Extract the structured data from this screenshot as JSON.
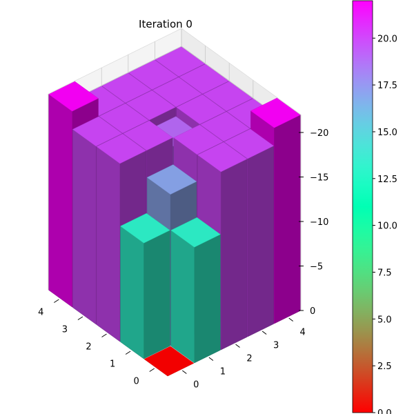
{
  "chart_data": {
    "type": "bar3d",
    "title": "Iteration 0",
    "xlabel": "",
    "ylabel": "",
    "zlabel": "",
    "grid": true,
    "x_ticks": [
      "0",
      "1",
      "2",
      "3",
      "4"
    ],
    "y_ticks": [
      "0",
      "1",
      "2",
      "3",
      "4"
    ],
    "z_ticks": [
      "0",
      "−5",
      "−10",
      "−15",
      "−20"
    ],
    "zlim": [
      0,
      22
    ],
    "z_inverted": true,
    "colormap": "rainbow_r",
    "colorbar": {
      "range": [
        0,
        22
      ],
      "ticks": [
        0,
        2.5,
        5,
        7.5,
        10,
        12.5,
        15,
        17.5,
        20
      ],
      "tick_labels": [
        "0.0",
        "2.5",
        "5.0",
        "7.5",
        "10.0",
        "12.5",
        "15.0",
        "17.5",
        "20.0"
      ]
    },
    "bars": [
      {
        "x": 0,
        "y": 0,
        "value": 0
      },
      {
        "x": 1,
        "y": 0,
        "value": 13
      },
      {
        "x": 2,
        "y": 0,
        "value": 20
      },
      {
        "x": 3,
        "y": 0,
        "value": 20
      },
      {
        "x": 4,
        "y": 0,
        "value": 22
      },
      {
        "x": 0,
        "y": 1,
        "value": 13
      },
      {
        "x": 1,
        "y": 1,
        "value": 17
      },
      {
        "x": 2,
        "y": 1,
        "value": 20
      },
      {
        "x": 3,
        "y": 1,
        "value": 20
      },
      {
        "x": 4,
        "y": 1,
        "value": 20
      },
      {
        "x": 0,
        "y": 2,
        "value": 20
      },
      {
        "x": 1,
        "y": 2,
        "value": 20
      },
      {
        "x": 2,
        "y": 2,
        "value": 19
      },
      {
        "x": 3,
        "y": 2,
        "value": 20
      },
      {
        "x": 4,
        "y": 2,
        "value": 20
      },
      {
        "x": 0,
        "y": 3,
        "value": 20
      },
      {
        "x": 1,
        "y": 3,
        "value": 20
      },
      {
        "x": 2,
        "y": 3,
        "value": 20
      },
      {
        "x": 3,
        "y": 3,
        "value": 20
      },
      {
        "x": 4,
        "y": 3,
        "value": 20
      },
      {
        "x": 0,
        "y": 4,
        "value": 22
      },
      {
        "x": 1,
        "y": 4,
        "value": 20
      },
      {
        "x": 2,
        "y": 4,
        "value": 20
      },
      {
        "x": 3,
        "y": 4,
        "value": 20
      },
      {
        "x": 4,
        "y": 4,
        "value": 20
      }
    ]
  }
}
